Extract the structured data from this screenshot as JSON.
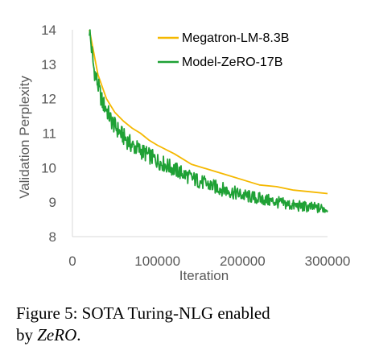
{
  "chart_data": {
    "type": "line",
    "xlabel": "Iteration",
    "ylabel": "Validation Perplexity",
    "xlim": [
      0,
      300000
    ],
    "ylim": [
      8,
      14
    ],
    "x_ticks": [
      0,
      100000,
      200000,
      300000
    ],
    "x_tick_labels": [
      "0",
      "100000",
      "200000",
      "300000"
    ],
    "y_ticks": [
      8,
      9,
      10,
      11,
      12,
      13,
      14
    ],
    "y_tick_labels": [
      "8",
      "9",
      "10",
      "11",
      "12",
      "13",
      "14"
    ],
    "grid": false,
    "legend_position": "top-right",
    "series": [
      {
        "name": "Megatron-LM-8.3B",
        "color": "#f5b800",
        "x": [
          20000,
          30000,
          40000,
          50000,
          60000,
          70000,
          80000,
          90000,
          100000,
          120000,
          140000,
          160000,
          180000,
          200000,
          220000,
          240000,
          260000,
          280000,
          300000
        ],
        "y": [
          14.0,
          12.7,
          12.0,
          11.6,
          11.35,
          11.15,
          11.0,
          10.8,
          10.65,
          10.4,
          10.1,
          9.95,
          9.8,
          9.65,
          9.5,
          9.45,
          9.35,
          9.3,
          9.25
        ]
      },
      {
        "name": "Model-ZeRO-17B",
        "color": "#1fa135",
        "x": [
          20000,
          25000,
          30000,
          35000,
          40000,
          45000,
          50000,
          60000,
          70000,
          80000,
          90000,
          100000,
          120000,
          140000,
          160000,
          180000,
          200000,
          220000,
          240000,
          260000,
          280000,
          300000
        ],
        "y": [
          14.0,
          12.9,
          12.4,
          11.9,
          11.7,
          11.4,
          11.2,
          10.9,
          10.65,
          10.5,
          10.35,
          10.2,
          9.95,
          9.7,
          9.5,
          9.35,
          9.2,
          9.1,
          9.0,
          8.9,
          8.85,
          8.8
        ]
      }
    ]
  },
  "caption": {
    "line1": "Figure 5: SOTA Turing-NLG enabled",
    "line2_prefix": "by ",
    "line2_em": "ZeRO",
    "line2_suffix": "."
  }
}
